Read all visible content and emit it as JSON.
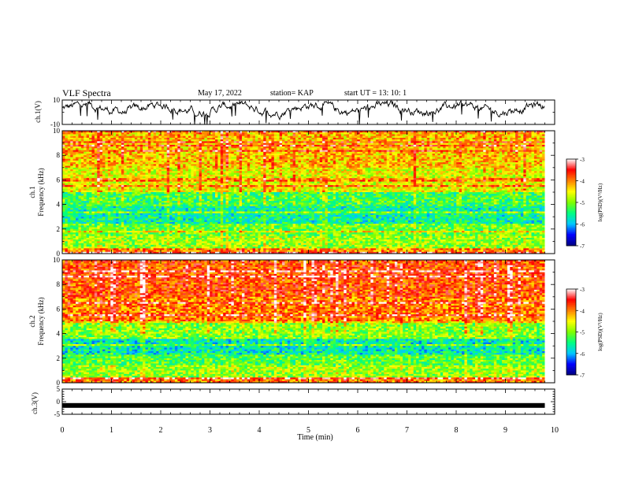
{
  "header": {
    "title": "VLF Spectra",
    "date": "May 17, 2022",
    "station": "station= KAP",
    "start_ut": "start  UT  =   13: 10: 1"
  },
  "colorbar": {
    "label": "log(PSD)(V²/Hz)",
    "ticks": [
      -3,
      -4,
      -5,
      -6,
      -7
    ],
    "range": [
      -7,
      -3
    ],
    "colors": [
      "#000080",
      "#0000ff",
      "#00c8ff",
      "#00ff80",
      "#80ff00",
      "#ffff00",
      "#ff8000",
      "#ff0000",
      "#ffffff"
    ]
  },
  "chart_data": [
    {
      "type": "line",
      "name": "ch1-waveform",
      "ylabel": "ch.1(V)",
      "ylim": [
        -10,
        10
      ],
      "yticks": [
        10,
        -10
      ],
      "xlim": [
        0,
        10
      ],
      "description_of_values": "noisy trace near +3 V",
      "y_mean": 3
    },
    {
      "type": "heatmap",
      "name": "ch1-spectrogram",
      "ylabel": "ch.1 Frequency (kHz)",
      "ylim": [
        0,
        10
      ],
      "yticks": [
        0,
        2,
        4,
        6,
        8,
        10
      ],
      "xlim": [
        0,
        10
      ],
      "data_end_min": 9.8,
      "z_range": [
        -7,
        -3
      ],
      "band_levels": [
        {
          "f_from": 0,
          "f_to": 0.5,
          "level": -4.0
        },
        {
          "f_from": 0.5,
          "f_to": 1.5,
          "level": -4.9
        },
        {
          "f_from": 1.5,
          "f_to": 2.5,
          "level": -5.1
        },
        {
          "f_from": 2.5,
          "f_to": 3.8,
          "level": -5.6
        },
        {
          "f_from": 3.8,
          "f_to": 5.0,
          "level": -5.3
        },
        {
          "f_from": 5.0,
          "f_to": 7.0,
          "level": -4.6
        },
        {
          "f_from": 7.0,
          "f_to": 10.0,
          "level": -4.3
        }
      ]
    },
    {
      "type": "heatmap",
      "name": "ch2-spectrogram",
      "ylabel": "ch.2 Frequency (kHz)",
      "ylim": [
        0,
        10
      ],
      "yticks": [
        0,
        2,
        4,
        6,
        8,
        10
      ],
      "xlim": [
        0,
        10
      ],
      "data_end_min": 9.8,
      "z_range": [
        -7,
        -3
      ],
      "band_levels": [
        {
          "f_from": 0,
          "f_to": 0.5,
          "level": -4.0
        },
        {
          "f_from": 0.5,
          "f_to": 1.5,
          "level": -4.9
        },
        {
          "f_from": 1.5,
          "f_to": 2.3,
          "level": -5.2
        },
        {
          "f_from": 2.3,
          "f_to": 3.6,
          "level": -5.7
        },
        {
          "f_from": 3.6,
          "f_to": 5.0,
          "level": -5.0
        },
        {
          "f_from": 5.0,
          "f_to": 7.0,
          "level": -4.0
        },
        {
          "f_from": 7.0,
          "f_to": 10.0,
          "level": -3.8
        }
      ]
    },
    {
      "type": "line",
      "name": "ch3-waveform",
      "ylabel": "ch.3(V)",
      "ylim": [
        -5,
        5
      ],
      "yticks": [
        5,
        0,
        -5
      ],
      "xlim": [
        0,
        10
      ],
      "y_mean": -1.5,
      "xlabel": "Time  (min)",
      "xticks": [
        0,
        1,
        2,
        3,
        4,
        5,
        6,
        7,
        8,
        9,
        10
      ]
    }
  ]
}
